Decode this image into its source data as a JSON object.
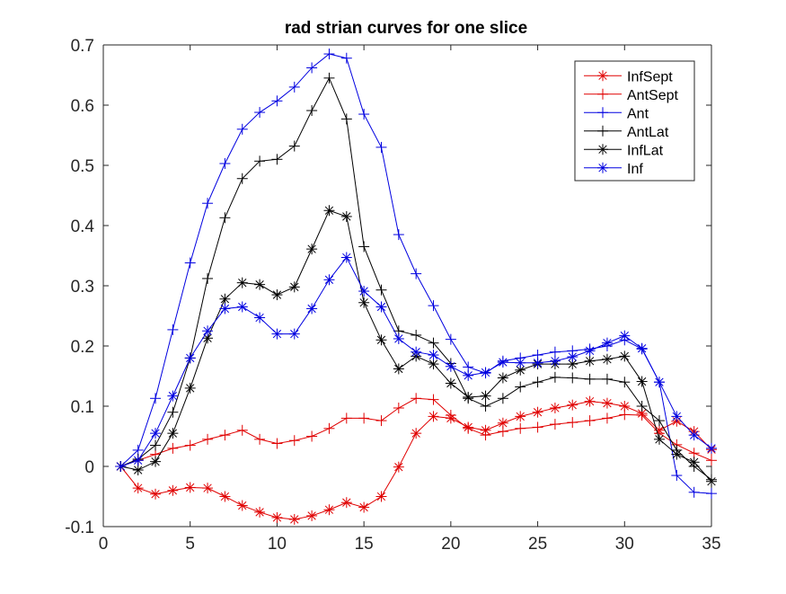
{
  "chart_data": {
    "type": "line",
    "title": "rad strian curves for one slice",
    "xlabel": "",
    "ylabel": "",
    "xlim": [
      0,
      35
    ],
    "ylim": [
      -0.1,
      0.7
    ],
    "xticks": [
      0,
      5,
      10,
      15,
      20,
      25,
      30,
      35
    ],
    "yticks": [
      -0.1,
      0,
      0.1,
      0.2,
      0.3,
      0.4,
      0.5,
      0.6,
      0.7
    ],
    "xtick_labels": [
      "0",
      "5",
      "10",
      "15",
      "20",
      "25",
      "30",
      "35"
    ],
    "ytick_labels": [
      "-0.1",
      "0",
      "0.1",
      "0.2",
      "0.3",
      "0.4",
      "0.5",
      "0.6",
      "0.7"
    ],
    "grid": false,
    "legend_position": "top-right",
    "x": [
      1,
      2,
      3,
      4,
      5,
      6,
      7,
      8,
      9,
      10,
      11,
      12,
      13,
      14,
      15,
      16,
      17,
      18,
      19,
      20,
      21,
      22,
      23,
      24,
      25,
      26,
      27,
      28,
      29,
      30,
      31,
      32,
      33,
      34,
      35
    ],
    "series": [
      {
        "name": "InfSept",
        "color": "#e00000",
        "marker": "star",
        "values": [
          0,
          -0.036,
          -0.046,
          -0.04,
          -0.035,
          -0.036,
          -0.05,
          -0.065,
          -0.076,
          -0.085,
          -0.088,
          -0.082,
          -0.072,
          -0.06,
          -0.068,
          -0.05,
          -0.001,
          0.055,
          0.083,
          0.08,
          0.065,
          0.06,
          0.072,
          0.083,
          0.09,
          0.097,
          0.102,
          0.108,
          0.105,
          0.1,
          0.088,
          0.06,
          0.075,
          0.058,
          0.028
        ]
      },
      {
        "name": "AntSept",
        "color": "#e00000",
        "marker": "plus",
        "values": [
          0,
          0.01,
          0.02,
          0.03,
          0.035,
          0.045,
          0.052,
          0.06,
          0.045,
          0.038,
          0.043,
          0.05,
          0.063,
          0.08,
          0.08,
          0.076,
          0.097,
          0.113,
          0.111,
          0.085,
          0.063,
          0.052,
          0.058,
          0.063,
          0.065,
          0.07,
          0.073,
          0.076,
          0.08,
          0.086,
          0.085,
          0.055,
          0.036,
          0.022,
          0.01
        ]
      },
      {
        "name": "Ant",
        "color": "#0000e0",
        "marker": "plus",
        "values": [
          0,
          0.027,
          0.113,
          0.227,
          0.338,
          0.437,
          0.503,
          0.56,
          0.588,
          0.607,
          0.63,
          0.662,
          0.685,
          0.678,
          0.585,
          0.53,
          0.385,
          0.32,
          0.267,
          0.211,
          0.165,
          0.155,
          0.175,
          0.18,
          0.185,
          0.19,
          0.192,
          0.195,
          0.2,
          0.21,
          0.195,
          0.14,
          -0.015,
          -0.043,
          -0.045
        ]
      },
      {
        "name": "AntLat",
        "color": "#000000",
        "marker": "plus",
        "values": [
          0,
          0.012,
          0.035,
          0.09,
          0.18,
          0.312,
          0.413,
          0.478,
          0.507,
          0.51,
          0.532,
          0.591,
          0.645,
          0.577,
          0.365,
          0.293,
          0.225,
          0.218,
          0.205,
          0.171,
          0.113,
          0.1,
          0.113,
          0.132,
          0.14,
          0.148,
          0.147,
          0.145,
          0.145,
          0.14,
          0.1,
          0.076,
          0.027,
          0.0,
          -0.022
        ]
      },
      {
        "name": "InfLat",
        "color": "#000000",
        "marker": "star",
        "values": [
          0,
          -0.006,
          0.008,
          0.055,
          0.13,
          0.213,
          0.278,
          0.305,
          0.302,
          0.285,
          0.298,
          0.361,
          0.425,
          0.415,
          0.272,
          0.21,
          0.162,
          0.183,
          0.17,
          0.138,
          0.115,
          0.117,
          0.147,
          0.16,
          0.17,
          0.17,
          0.17,
          0.175,
          0.178,
          0.183,
          0.141,
          0.045,
          0.02,
          0.007,
          -0.025
        ]
      },
      {
        "name": "Inf",
        "color": "#0000e0",
        "marker": "star",
        "values": [
          0,
          0.01,
          0.055,
          0.117,
          0.18,
          0.225,
          0.262,
          0.265,
          0.247,
          0.22,
          0.22,
          0.262,
          0.31,
          0.347,
          0.291,
          0.265,
          0.212,
          0.19,
          0.185,
          0.166,
          0.151,
          0.156,
          0.173,
          0.172,
          0.172,
          0.175,
          0.182,
          0.192,
          0.205,
          0.217,
          0.196,
          0.14,
          0.083,
          0.052,
          0.03
        ]
      }
    ]
  }
}
